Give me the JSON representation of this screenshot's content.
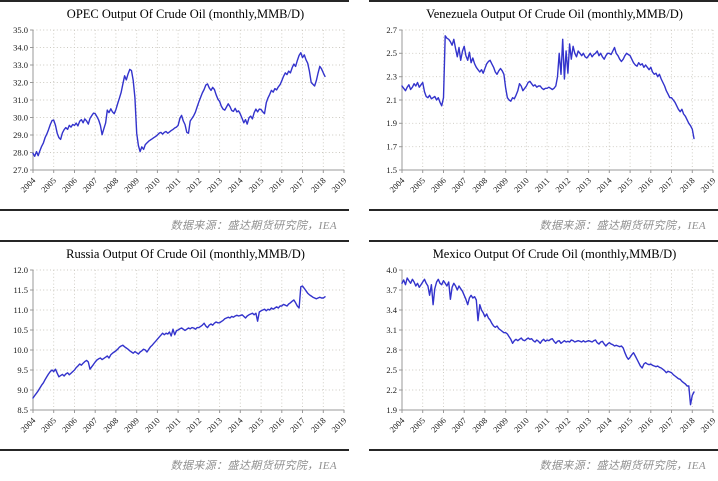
{
  "source_note": "数据来源：盛达期货研究院，IEA",
  "style": {
    "line_color": "#3333cc",
    "grid_color": "#ccc9c0",
    "axis_color": "#999999",
    "divider_color": "#262626",
    "title_color": "#000000",
    "tick_label_color": "#1a1a1a",
    "source_text_color": "#8f8f8f",
    "background": "#ffffff"
  },
  "chart_data": [
    {
      "type": "line",
      "title": "OPEC Output Of Crude Oil (monthly,MMB/D)",
      "xlabel": "",
      "ylabel": "",
      "legend": "none",
      "grid": true,
      "x_axis": {
        "min": 2004,
        "max": 2019,
        "tick_years": [
          2004,
          2005,
          2006,
          2007,
          2008,
          2009,
          2010,
          2011,
          2012,
          2013,
          2014,
          2015,
          2016,
          2017,
          2018,
          2019
        ]
      },
      "ylim": [
        27.0,
        35.0
      ],
      "y_tick_step": 1.0,
      "series": [
        {
          "name": "OPEC crude oil output",
          "unit": "MMB/D",
          "frequency": "monthly",
          "start": "2004-01",
          "end": "2018-02",
          "values": [
            27.95,
            27.78,
            28.05,
            27.82,
            28.1,
            28.35,
            28.55,
            28.85,
            29.05,
            29.3,
            29.6,
            29.82,
            29.85,
            29.55,
            29.1,
            28.85,
            28.75,
            29.12,
            29.3,
            29.42,
            29.32,
            29.55,
            29.45,
            29.6,
            29.55,
            29.68,
            29.52,
            29.78,
            29.88,
            29.7,
            29.92,
            29.8,
            29.62,
            29.95,
            30.1,
            30.25,
            30.22,
            30.05,
            29.85,
            29.55,
            29.02,
            29.35,
            29.68,
            30.42,
            30.28,
            30.5,
            30.32,
            30.22,
            30.45,
            30.8,
            31.1,
            31.42,
            31.9,
            32.38,
            32.15,
            32.48,
            32.75,
            32.68,
            32.12,
            31.15,
            29.1,
            28.4,
            28.05,
            28.32,
            28.18,
            28.45,
            28.55,
            28.65,
            28.72,
            28.78,
            28.85,
            28.92,
            29.0,
            29.1,
            29.15,
            29.05,
            29.15,
            29.2,
            29.1,
            29.18,
            29.25,
            29.32,
            29.4,
            29.45,
            29.55,
            29.95,
            30.12,
            29.8,
            29.6,
            29.15,
            29.1,
            29.8,
            29.95,
            30.1,
            30.3,
            30.6,
            30.9,
            31.15,
            31.4,
            31.6,
            31.85,
            31.92,
            31.7,
            31.55,
            31.72,
            31.6,
            31.3,
            31.05,
            30.92,
            30.65,
            30.48,
            30.42,
            30.6,
            30.78,
            30.62,
            30.4,
            30.35,
            30.52,
            30.32,
            30.38,
            30.2,
            29.95,
            29.7,
            29.88,
            29.62,
            29.98,
            30.08,
            29.92,
            30.28,
            30.48,
            30.32,
            30.48,
            30.45,
            30.32,
            30.22,
            30.85,
            31.12,
            31.32,
            31.55,
            31.45,
            31.65,
            31.58,
            31.75,
            31.88,
            32.1,
            32.35,
            32.55,
            32.45,
            32.65,
            32.55,
            32.85,
            33.05,
            32.92,
            33.25,
            33.55,
            33.7,
            33.42,
            33.58,
            33.3,
            33.1,
            32.65,
            32.0,
            31.9,
            31.8,
            32.12,
            32.55,
            32.92,
            32.78,
            32.55,
            32.35
          ]
        }
      ]
    },
    {
      "type": "line",
      "title": "Venezuela Output Of Crude Oil (monthly,MMB/D)",
      "xlabel": "",
      "ylabel": "",
      "legend": "none",
      "grid": true,
      "x_axis": {
        "min": 2004,
        "max": 2019,
        "tick_years": [
          2004,
          2005,
          2006,
          2007,
          2008,
          2009,
          2010,
          2011,
          2012,
          2013,
          2014,
          2015,
          2016,
          2017,
          2018,
          2019
        ]
      },
      "ylim": [
        1.5,
        2.7
      ],
      "y_tick_step": 0.2,
      "series": [
        {
          "name": "Venezuela crude oil output",
          "unit": "MMB/D",
          "frequency": "monthly",
          "start": "2004-01",
          "end": "2018-02",
          "values": [
            2.22,
            2.2,
            2.18,
            2.21,
            2.23,
            2.19,
            2.21,
            2.24,
            2.22,
            2.25,
            2.21,
            2.23,
            2.25,
            2.17,
            2.13,
            2.12,
            2.14,
            2.11,
            2.12,
            2.13,
            2.1,
            2.12,
            2.08,
            2.05,
            2.12,
            2.65,
            2.63,
            2.62,
            2.6,
            2.57,
            2.62,
            2.54,
            2.47,
            2.55,
            2.44,
            2.52,
            2.56,
            2.48,
            2.44,
            2.51,
            2.42,
            2.46,
            2.41,
            2.38,
            2.36,
            2.34,
            2.36,
            2.33,
            2.37,
            2.41,
            2.43,
            2.44,
            2.41,
            2.38,
            2.34,
            2.32,
            2.35,
            2.37,
            2.35,
            2.32,
            2.2,
            2.12,
            2.1,
            2.09,
            2.12,
            2.11,
            2.14,
            2.18,
            2.24,
            2.22,
            2.18,
            2.2,
            2.22,
            2.25,
            2.26,
            2.24,
            2.22,
            2.23,
            2.21,
            2.22,
            2.22,
            2.2,
            2.19,
            2.2,
            2.2,
            2.21,
            2.2,
            2.19,
            2.2,
            2.22,
            2.3,
            2.5,
            2.32,
            2.62,
            2.28,
            2.52,
            2.33,
            2.58,
            2.45,
            2.56,
            2.5,
            2.47,
            2.52,
            2.5,
            2.48,
            2.5,
            2.47,
            2.46,
            2.48,
            2.5,
            2.47,
            2.49,
            2.5,
            2.52,
            2.48,
            2.5,
            2.47,
            2.45,
            2.48,
            2.5,
            2.5,
            2.49,
            2.52,
            2.55,
            2.5,
            2.48,
            2.45,
            2.43,
            2.45,
            2.48,
            2.5,
            2.49,
            2.48,
            2.45,
            2.42,
            2.4,
            2.39,
            2.42,
            2.4,
            2.41,
            2.38,
            2.4,
            2.38,
            2.36,
            2.38,
            2.34,
            2.32,
            2.33,
            2.3,
            2.32,
            2.28,
            2.25,
            2.22,
            2.18,
            2.15,
            2.12,
            2.12,
            2.1,
            2.08,
            2.05,
            2.02,
            2.0,
            2.02,
            1.98,
            1.96,
            1.93,
            1.9,
            1.88,
            1.85,
            1.77
          ]
        }
      ]
    },
    {
      "type": "line",
      "title": "Russia Output Of Crude Oil (monthly,MMB/D)",
      "xlabel": "",
      "ylabel": "",
      "legend": "none",
      "grid": true,
      "x_axis": {
        "min": 2004,
        "max": 2019,
        "tick_years": [
          2004,
          2005,
          2006,
          2007,
          2008,
          2009,
          2010,
          2011,
          2012,
          2013,
          2014,
          2015,
          2016,
          2017,
          2018,
          2019
        ]
      },
      "ylim": [
        8.5,
        12.0
      ],
      "y_tick_step": 0.5,
      "series": [
        {
          "name": "Russia crude oil output",
          "unit": "MMB/D",
          "frequency": "monthly",
          "start": "2004-01",
          "end": "2018-02",
          "values": [
            8.8,
            8.86,
            8.92,
            8.98,
            9.05,
            9.12,
            9.18,
            9.26,
            9.33,
            9.4,
            9.46,
            9.5,
            9.46,
            9.52,
            9.42,
            9.33,
            9.36,
            9.39,
            9.35,
            9.4,
            9.43,
            9.38,
            9.42,
            9.46,
            9.5,
            9.56,
            9.6,
            9.65,
            9.62,
            9.67,
            9.71,
            9.74,
            9.7,
            9.52,
            9.58,
            9.64,
            9.7,
            9.75,
            9.78,
            9.8,
            9.76,
            9.79,
            9.82,
            9.85,
            9.8,
            9.88,
            9.92,
            9.95,
            9.98,
            10.02,
            10.07,
            10.1,
            10.12,
            10.08,
            10.05,
            10.02,
            9.98,
            9.95,
            9.92,
            9.96,
            9.93,
            9.9,
            9.95,
            9.98,
            10.02,
            10.0,
            9.95,
            10.02,
            10.08,
            10.12,
            10.17,
            10.22,
            10.27,
            10.32,
            10.37,
            10.42,
            10.38,
            10.42,
            10.4,
            10.45,
            10.35,
            10.52,
            10.38,
            10.48,
            10.5,
            10.53,
            10.55,
            10.52,
            10.49,
            10.52,
            10.55,
            10.53,
            10.56,
            10.55,
            10.52,
            10.56,
            10.56,
            10.59,
            10.62,
            10.67,
            10.6,
            10.56,
            10.62,
            10.65,
            10.62,
            10.67,
            10.7,
            10.68,
            10.68,
            10.71,
            10.74,
            10.78,
            10.8,
            10.82,
            10.8,
            10.84,
            10.82,
            10.85,
            10.87,
            10.85,
            10.86,
            10.88,
            10.84,
            10.8,
            10.85,
            10.88,
            10.9,
            10.92,
            10.88,
            10.92,
            10.72,
            10.95,
            10.98,
            11.0,
            11.02,
            10.98,
            11.02,
            11.0,
            11.05,
            11.02,
            11.05,
            11.08,
            11.05,
            11.1,
            11.1,
            11.14,
            11.12,
            11.1,
            11.15,
            11.18,
            11.22,
            11.25,
            11.18,
            11.1,
            11.05,
            11.58,
            11.6,
            11.54,
            11.48,
            11.42,
            11.38,
            11.35,
            11.32,
            11.3,
            11.28,
            11.3,
            11.32,
            11.3,
            11.3,
            11.33
          ]
        }
      ]
    },
    {
      "type": "line",
      "title": "Mexico Output Of Crude Oil (monthly,MMB/D)",
      "xlabel": "",
      "ylabel": "",
      "legend": "none",
      "grid": true,
      "x_axis": {
        "min": 2004,
        "max": 2019,
        "tick_years": [
          2004,
          2005,
          2006,
          2007,
          2008,
          2009,
          2010,
          2011,
          2012,
          2013,
          2014,
          2015,
          2016,
          2017,
          2018,
          2019
        ]
      },
      "ylim": [
        1.9,
        4.0
      ],
      "y_tick_step": 0.3,
      "series": [
        {
          "name": "Mexico crude oil output",
          "unit": "MMB/D",
          "frequency": "monthly",
          "start": "2004-01",
          "end": "2018-02",
          "values": [
            3.8,
            3.85,
            3.78,
            3.88,
            3.84,
            3.8,
            3.86,
            3.82,
            3.76,
            3.8,
            3.74,
            3.78,
            3.82,
            3.86,
            3.8,
            3.76,
            3.62,
            3.78,
            3.48,
            3.72,
            3.82,
            3.86,
            3.8,
            3.78,
            3.84,
            3.8,
            3.76,
            3.82,
            3.56,
            3.74,
            3.8,
            3.76,
            3.7,
            3.76,
            3.72,
            3.68,
            3.62,
            3.56,
            3.48,
            3.58,
            3.62,
            3.58,
            3.6,
            3.55,
            3.24,
            3.48,
            3.4,
            3.36,
            3.3,
            3.34,
            3.28,
            3.25,
            3.2,
            3.16,
            3.14,
            3.16,
            3.12,
            3.1,
            3.08,
            3.06,
            3.06,
            3.04,
            3.0,
            2.96,
            2.9,
            2.94,
            2.96,
            2.94,
            2.96,
            2.98,
            2.95,
            2.94,
            2.96,
            2.98,
            2.96,
            2.97,
            2.94,
            2.92,
            2.95,
            2.93,
            2.9,
            2.94,
            2.96,
            2.93,
            2.95,
            2.94,
            2.96,
            2.97,
            2.93,
            2.9,
            2.93,
            2.94,
            2.9,
            2.92,
            2.94,
            2.92,
            2.93,
            2.92,
            2.95,
            2.94,
            2.92,
            2.93,
            2.94,
            2.93,
            2.92,
            2.94,
            2.92,
            2.93,
            2.94,
            2.93,
            2.92,
            2.94,
            2.95,
            2.91,
            2.89,
            2.92,
            2.93,
            2.89,
            2.86,
            2.89,
            2.91,
            2.89,
            2.88,
            2.86,
            2.87,
            2.86,
            2.85,
            2.86,
            2.83,
            2.76,
            2.7,
            2.66,
            2.69,
            2.73,
            2.76,
            2.71,
            2.66,
            2.61,
            2.56,
            2.53,
            2.59,
            2.61,
            2.59,
            2.58,
            2.59,
            2.57,
            2.56,
            2.55,
            2.56,
            2.54,
            2.53,
            2.51,
            2.49,
            2.46,
            2.48,
            2.47,
            2.46,
            2.43,
            2.41,
            2.39,
            2.37,
            2.36,
            2.33,
            2.31,
            2.29,
            2.26,
            2.26,
            1.98,
            2.12,
            2.17
          ]
        }
      ]
    }
  ]
}
